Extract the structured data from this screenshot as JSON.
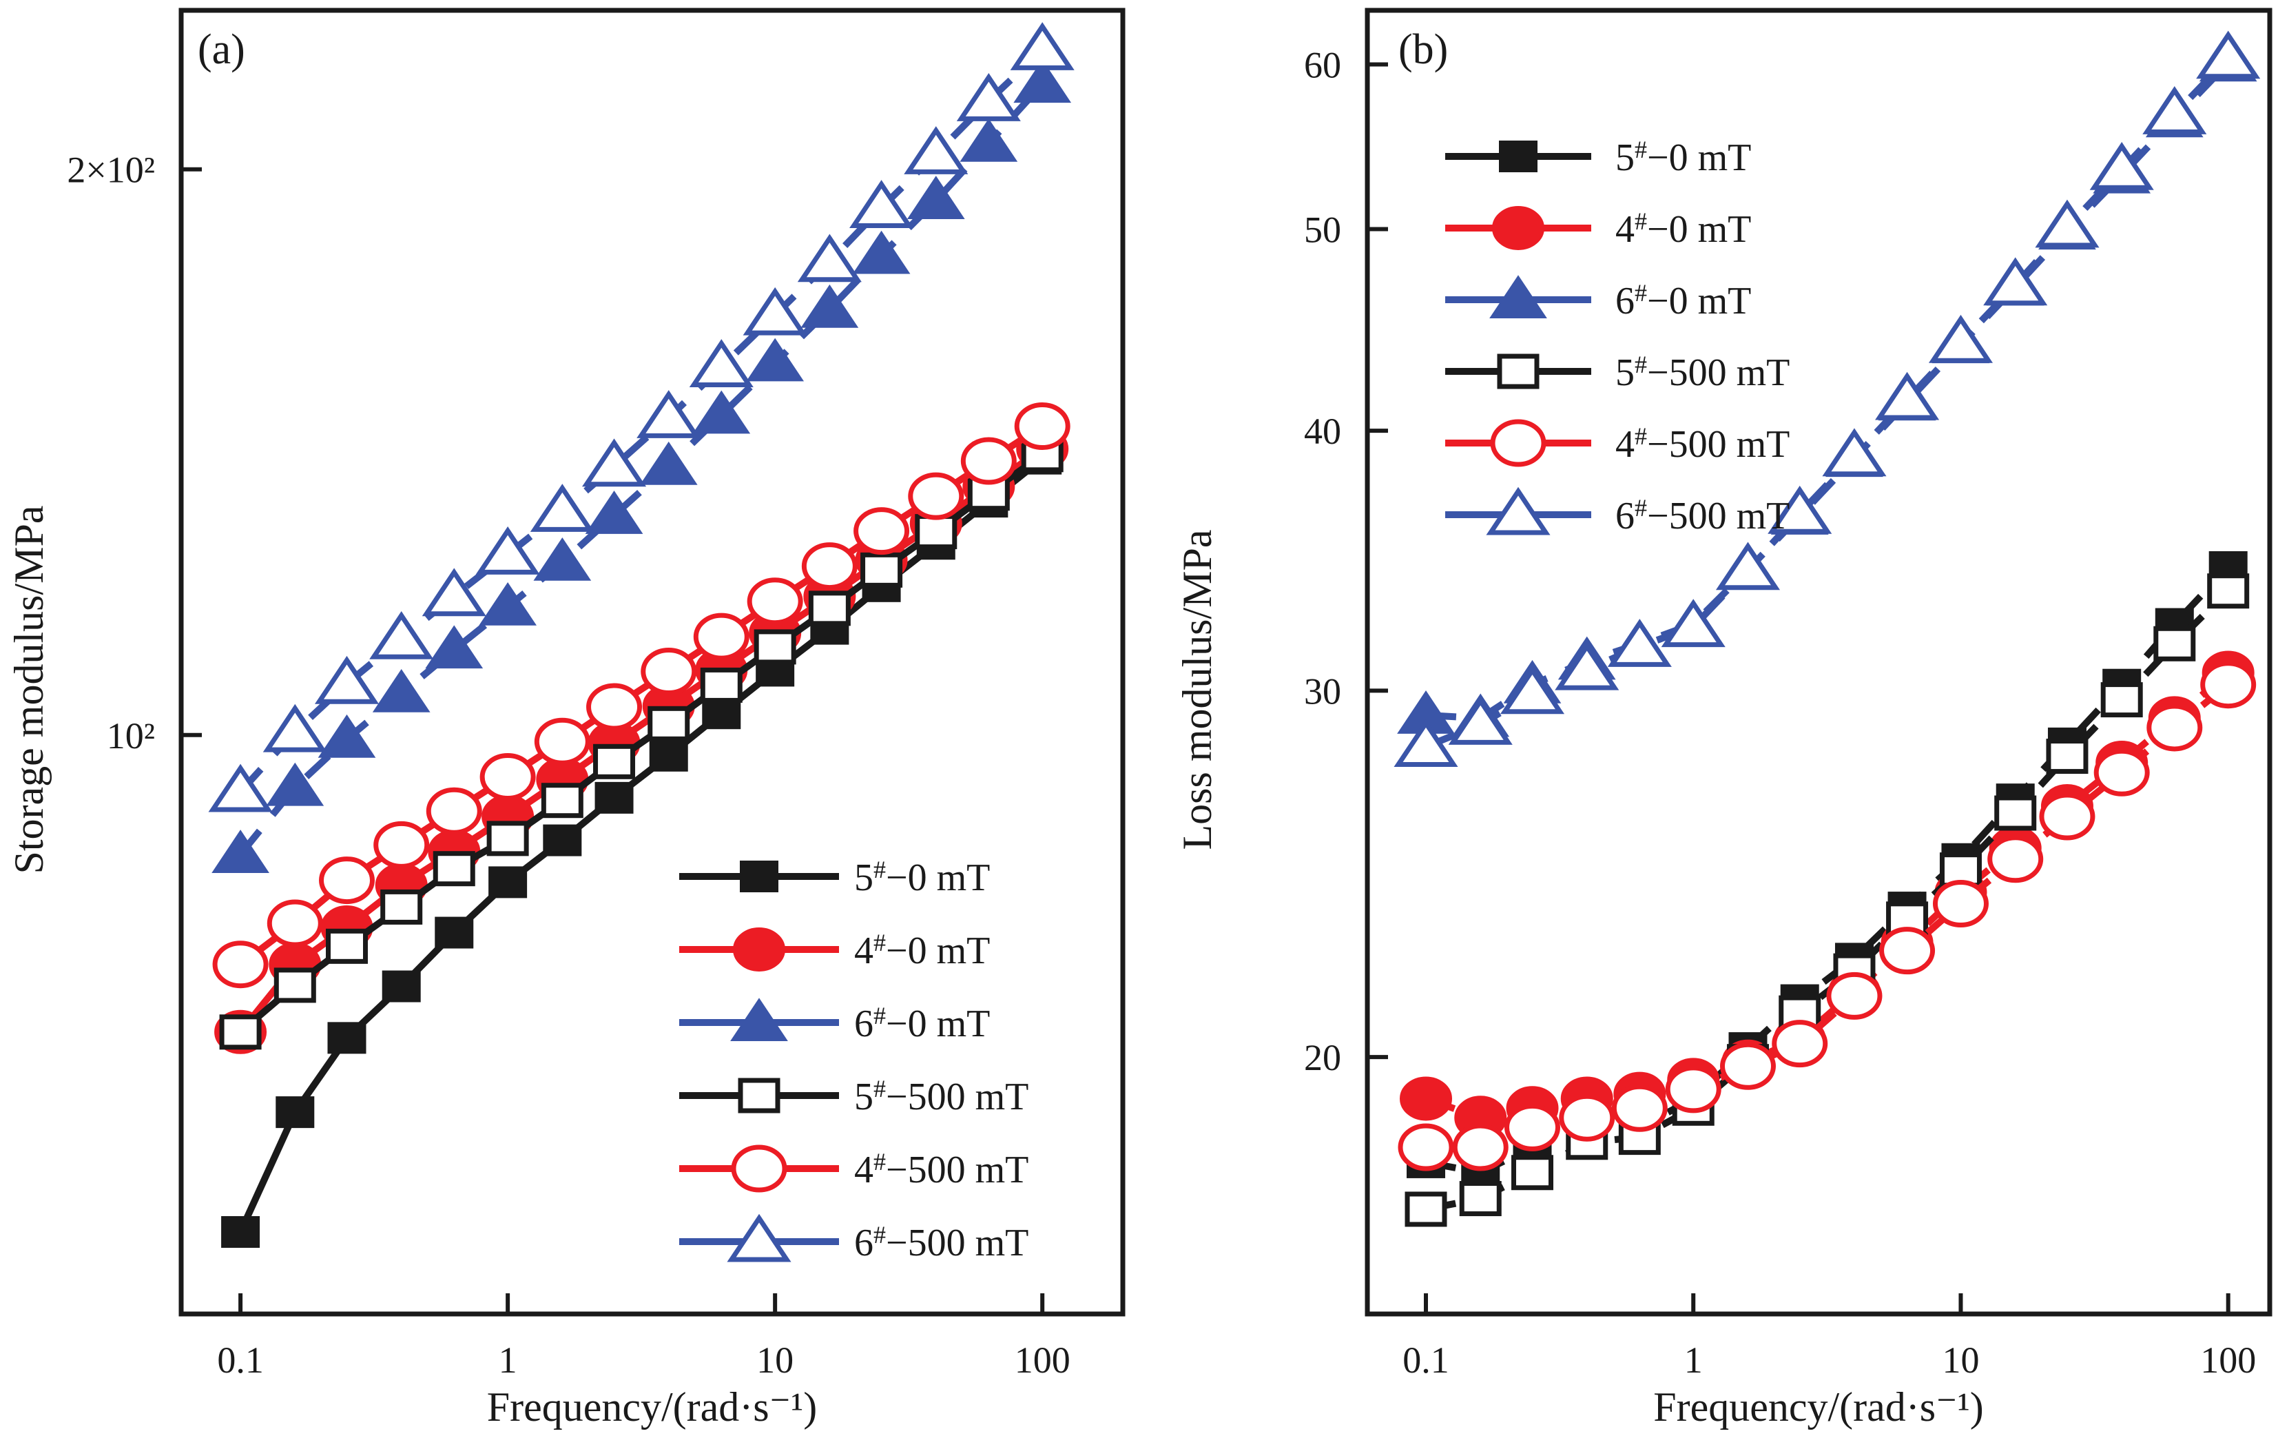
{
  "figure": {
    "background": "#ffffff",
    "colors": {
      "black": "#1a1a1a",
      "red": "#ec1c24",
      "blue": "#3a55a8"
    }
  },
  "chart_data": [
    {
      "type": "line",
      "panel_label": "(a)",
      "xlabel": "Frequency/(rad·s⁻¹)",
      "ylabel": "Storage modulus/MPa",
      "x_scale": "log",
      "y_scale": "log",
      "xlim": [
        0.06,
        200
      ],
      "ylim": [
        49.2,
        243
      ],
      "grid": false,
      "legend_position": "lower-right",
      "x_ticks": [
        {
          "v": 0.1,
          "label": "0.1"
        },
        {
          "v": 1,
          "label": "1"
        },
        {
          "v": 10,
          "label": "10"
        },
        {
          "v": 100,
          "label": "100"
        }
      ],
      "y_ticks": [
        {
          "v": 100,
          "label": "10²"
        },
        {
          "v": 200,
          "label": "2×10²"
        }
      ],
      "x": [
        0.1,
        0.16,
        0.25,
        0.4,
        0.63,
        1,
        1.6,
        2.5,
        4,
        6.3,
        10,
        16,
        25,
        40,
        63,
        100
      ],
      "series": [
        {
          "name": "5#−0 mT",
          "color": "#1a1a1a",
          "marker": "square",
          "fill": "solid",
          "line": "solid",
          "values": [
            54.4,
            63.0,
            69.0,
            73.5,
            78.5,
            83.5,
            87.9,
            92.6,
            97.5,
            102.7,
            108.2,
            113.9,
            120.0,
            126.4,
            133.1,
            140.3
          ]
        },
        {
          "name": "4#−0 mT",
          "color": "#ec1c24",
          "marker": "circle",
          "fill": "solid",
          "line": "solid",
          "values": [
            69.5,
            75.5,
            79.0,
            83.2,
            86.7,
            90.5,
            94.7,
            99.0,
            103.6,
            108.3,
            113.3,
            118.5,
            123.9,
            129.6,
            135.6,
            142.0
          ]
        },
        {
          "name": "6#−0 mT",
          "color": "#3a55a8",
          "marker": "triangle",
          "fill": "solid",
          "line": "dashed",
          "values": [
            86.4,
            93.8,
            99.5,
            105.2,
            111.0,
            117.0,
            123.6,
            130.9,
            139.0,
            148.0,
            157.8,
            168.5,
            180.0,
            192.5,
            206.5,
            222.0
          ]
        },
        {
          "name": "5#−500 mT",
          "color": "#1a1a1a",
          "marker": "square",
          "fill": "open",
          "line": "solid",
          "values": [
            69.5,
            73.6,
            77.2,
            81.0,
            84.9,
            88.1,
            92.3,
            96.8,
            101.4,
            106.3,
            111.4,
            116.8,
            122.4,
            128.3,
            134.5,
            141.0
          ]
        },
        {
          "name": "4#−500 mT",
          "color": "#ec1c24",
          "marker": "circle",
          "fill": "open",
          "line": "solid",
          "values": [
            75.5,
            79.4,
            83.7,
            87.4,
            91.1,
            95.0,
            99.2,
            103.5,
            108.1,
            112.8,
            117.8,
            123.0,
            128.4,
            134.0,
            139.9,
            146.0
          ]
        },
        {
          "name": "6#−500 mT",
          "color": "#3a55a8",
          "marker": "triangle",
          "fill": "open",
          "line": "dashed",
          "values": [
            93.3,
            100.4,
            106.5,
            112.5,
            118.6,
            124.8,
            131.5,
            139.0,
            147.5,
            157.0,
            167.3,
            178.6,
            190.8,
            203.8,
            217.5,
            231.5
          ]
        }
      ]
    },
    {
      "type": "line",
      "panel_label": "(b)",
      "xlabel": "Frequency/(rad·s⁻¹)",
      "ylabel": "Loss modulus/MPa",
      "x_scale": "log",
      "y_scale": "log",
      "xlim": [
        0.0604,
        143
      ],
      "ylim": [
        15.05,
        63.7
      ],
      "grid": false,
      "legend_position": "upper-left",
      "x_ticks": [
        {
          "v": 0.1,
          "label": "0.1"
        },
        {
          "v": 1,
          "label": "1"
        },
        {
          "v": 10,
          "label": "10"
        },
        {
          "v": 100,
          "label": "100"
        }
      ],
      "y_ticks": [
        {
          "v": 20,
          "label": "20"
        },
        {
          "v": 30,
          "label": "30"
        },
        {
          "v": 40,
          "label": "40"
        },
        {
          "v": 50,
          "label": "50"
        },
        {
          "v": 60,
          "label": "60"
        }
      ],
      "x": [
        0.1,
        0.16,
        0.25,
        0.4,
        0.63,
        1,
        1.6,
        2.5,
        4,
        6.3,
        10,
        16,
        25,
        40,
        63,
        100
      ],
      "series": [
        {
          "name": "5#−0 mT",
          "color": "#1a1a1a",
          "marker": "square",
          "fill": "solid",
          "line": "dashed",
          "values": [
            17.8,
            17.6,
            18.1,
            18.4,
            18.5,
            19.1,
            20.2,
            21.3,
            22.3,
            23.6,
            24.9,
            26.6,
            28.3,
            30.2,
            32.3,
            34.4
          ]
        },
        {
          "name": "4#−0 mT",
          "color": "#ec1c24",
          "marker": "circle",
          "fill": "solid",
          "line": "dashed",
          "values": [
            19.1,
            18.7,
            18.9,
            19.1,
            19.2,
            19.5,
            19.9,
            20.4,
            21.5,
            22.7,
            24.0,
            25.2,
            26.4,
            27.7,
            29.1,
            30.6
          ]
        },
        {
          "name": "6#−0 mT",
          "color": "#3a55a8",
          "marker": "triangle",
          "fill": "solid",
          "line": "dashed",
          "values": [
            29.2,
            29.1,
            30.2,
            31.0,
            31.6,
            32.3,
            34.3,
            36.4,
            38.8,
            41.3,
            44.0,
            46.9,
            49.9,
            53.1,
            56.5,
            60.1
          ]
        },
        {
          "name": "5#−500 mT",
          "color": "#1a1a1a",
          "marker": "square",
          "fill": "open",
          "line": "dashed",
          "values": [
            16.9,
            17.1,
            17.6,
            18.2,
            18.3,
            18.9,
            19.9,
            21.0,
            22.0,
            23.3,
            24.6,
            26.2,
            27.9,
            29.7,
            31.6,
            33.5
          ]
        },
        {
          "name": "4#−500 mT",
          "color": "#ec1c24",
          "marker": "circle",
          "fill": "open",
          "line": "dashed",
          "values": [
            18.1,
            18.1,
            18.5,
            18.7,
            18.9,
            19.3,
            19.8,
            20.3,
            21.4,
            22.5,
            23.7,
            24.9,
            26.1,
            27.4,
            28.8,
            30.2
          ]
        },
        {
          "name": "6#−500 mT",
          "color": "#3a55a8",
          "marker": "triangle",
          "fill": "open",
          "line": "dashed",
          "values": [
            28.2,
            28.9,
            29.9,
            30.7,
            31.5,
            32.2,
            34.3,
            36.5,
            38.9,
            41.4,
            44.1,
            47.0,
            50.1,
            53.4,
            56.8,
            60.4
          ]
        }
      ]
    }
  ]
}
